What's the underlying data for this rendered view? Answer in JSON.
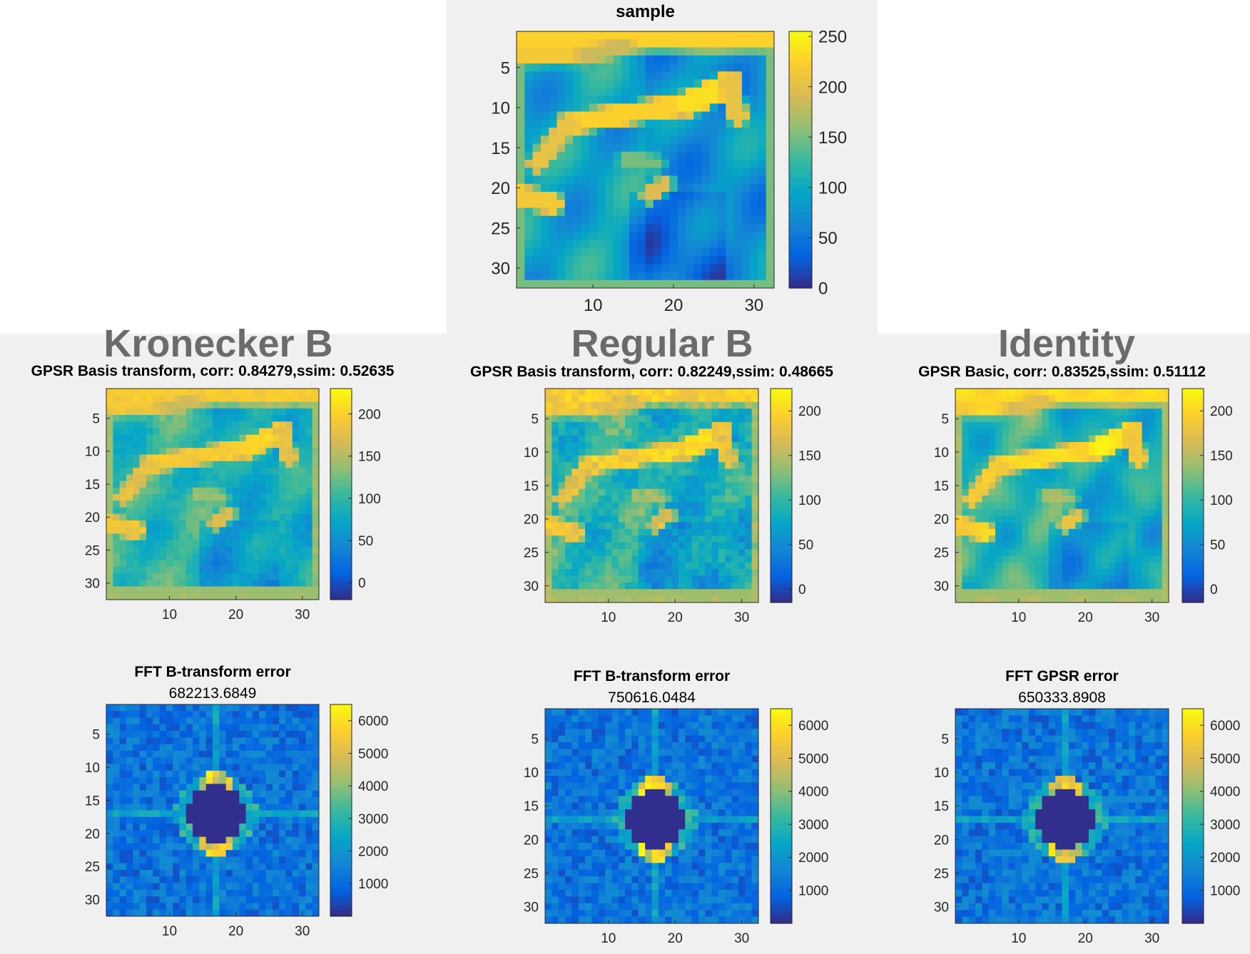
{
  "headings": {
    "kronecker": "Kronecker B",
    "regular": "Regular B",
    "identity": "Identity"
  },
  "colormap": {
    "name": "parula",
    "stops": [
      "#352a87",
      "#0363e1",
      "#1485d4",
      "#06a7c6",
      "#38b99e",
      "#92bf73",
      "#d9ba56",
      "#fcce2e",
      "#f9fb0e"
    ]
  },
  "chart_data": [
    {
      "id": "sample",
      "type": "heatmap",
      "title": "sample",
      "subtitle": "",
      "grid_size": [
        32,
        32
      ],
      "xticks": [
        10,
        20,
        30
      ],
      "yticks": [
        5,
        10,
        15,
        20,
        25,
        30
      ],
      "clim": [
        0,
        255
      ],
      "colorbar_ticks": [
        0,
        50,
        100,
        150,
        200,
        250
      ]
    },
    {
      "id": "kron-recon",
      "type": "heatmap",
      "title": "GPSR Basis transform, corr: 0.84279,ssim: 0.52635",
      "subtitle": "",
      "grid_size": [
        32,
        32
      ],
      "xticks": [
        10,
        20,
        30
      ],
      "yticks": [
        5,
        10,
        15,
        20,
        25,
        30
      ],
      "clim": [
        -20,
        230
      ],
      "colorbar_ticks": [
        0,
        50,
        100,
        150,
        200
      ]
    },
    {
      "id": "reg-recon",
      "type": "heatmap",
      "title": "GPSR Basis transform, corr: 0.82249,ssim: 0.48665",
      "subtitle": "",
      "grid_size": [
        32,
        32
      ],
      "xticks": [
        10,
        20,
        30
      ],
      "yticks": [
        5,
        10,
        15,
        20,
        25,
        30
      ],
      "clim": [
        -15,
        225
      ],
      "colorbar_ticks": [
        0,
        50,
        100,
        150,
        200
      ]
    },
    {
      "id": "ident-recon",
      "type": "heatmap",
      "title": "GPSR Basic, corr: 0.83525,ssim: 0.51112",
      "subtitle": "",
      "grid_size": [
        32,
        32
      ],
      "xticks": [
        10,
        20,
        30
      ],
      "yticks": [
        5,
        10,
        15,
        20,
        25,
        30
      ],
      "clim": [
        -15,
        225
      ],
      "colorbar_ticks": [
        0,
        50,
        100,
        150,
        200
      ]
    },
    {
      "id": "kron-fft",
      "type": "heatmap",
      "title": "FFT B-transform error",
      "subtitle": "682213.6849",
      "grid_size": [
        32,
        32
      ],
      "xticks": [
        10,
        20,
        30
      ],
      "yticks": [
        5,
        10,
        15,
        20,
        25,
        30
      ],
      "clim": [
        0,
        6500
      ],
      "colorbar_ticks": [
        1000,
        2000,
        3000,
        4000,
        5000,
        6000
      ]
    },
    {
      "id": "reg-fft",
      "type": "heatmap",
      "title": "FFT B-transform error",
      "subtitle": "750616.0484",
      "grid_size": [
        32,
        32
      ],
      "xticks": [
        10,
        20,
        30
      ],
      "yticks": [
        5,
        10,
        15,
        20,
        25,
        30
      ],
      "clim": [
        0,
        6500
      ],
      "colorbar_ticks": [
        1000,
        2000,
        3000,
        4000,
        5000,
        6000
      ]
    },
    {
      "id": "ident-fft",
      "type": "heatmap",
      "title": "FFT GPSR error",
      "subtitle": "650333.8908",
      "grid_size": [
        32,
        32
      ],
      "xticks": [
        10,
        20,
        30
      ],
      "yticks": [
        5,
        10,
        15,
        20,
        25,
        30
      ],
      "clim": [
        0,
        6500
      ],
      "colorbar_ticks": [
        1000,
        2000,
        3000,
        4000,
        5000,
        6000
      ]
    }
  ]
}
